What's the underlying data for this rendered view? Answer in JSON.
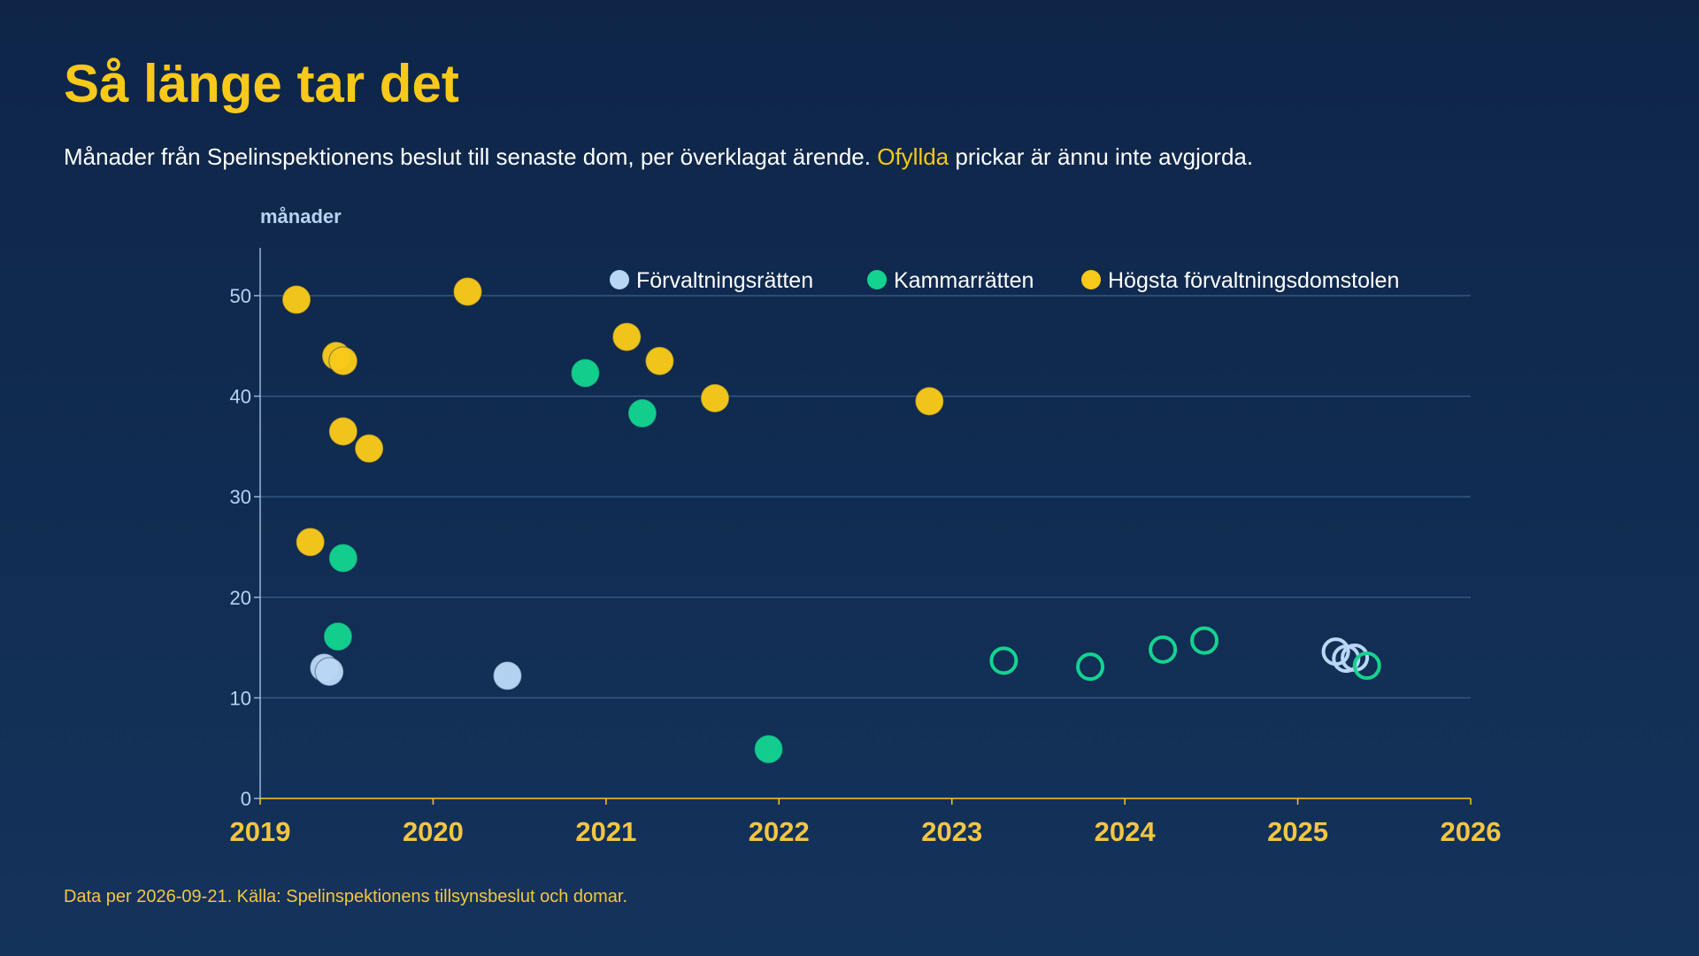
{
  "header": {
    "title": "Så länge tar det",
    "subtitle_before": "Månader från Spelinspektionens beslut till senaste dom, per överklagat ärende. ",
    "subtitle_highlight": "Ofyllda",
    "subtitle_after": " prickar är ännu inte avgjorda."
  },
  "footer": {
    "note": "Data per 2026-09-21. Källa: Spelinspektionens tillsynsbeslut och domar."
  },
  "colors": {
    "Förvaltningsrätten": "#b9d7f5",
    "Kammarrätten": "#14d390",
    "Högsta förvaltningsdomstolen": "#f8c91a",
    "accent": "#f8c91a",
    "gridline": "#35577f",
    "axis": "#9ab6d8"
  },
  "chart_data": {
    "type": "scatter",
    "title": "",
    "xlabel": "",
    "ylabel": "månader",
    "xlim": [
      2019,
      2026
    ],
    "ylim": [
      0,
      55
    ],
    "x_ticks": [
      "2019",
      "2020",
      "2021",
      "2022",
      "2023",
      "2024",
      "2025",
      "2026"
    ],
    "y_ticks": [
      "0",
      "10",
      "20",
      "30",
      "40",
      "50"
    ],
    "y_tick_values": [
      0,
      10,
      20,
      30,
      40,
      50
    ],
    "grid": true,
    "legend_position": "top-right",
    "legend": [
      "Förvaltningsrätten",
      "Kammarrätten",
      "Högsta förvaltningsdomstolen"
    ],
    "series": [
      {
        "name": "Förvaltningsrätten",
        "points": [
          {
            "x": 2019.37,
            "y": 13.0,
            "decided": true
          },
          {
            "x": 2019.4,
            "y": 12.6,
            "decided": true
          },
          {
            "x": 2020.43,
            "y": 12.2,
            "decided": true
          },
          {
            "x": 2025.22,
            "y": 14.6,
            "decided": false
          },
          {
            "x": 2025.28,
            "y": 13.9,
            "decided": false
          },
          {
            "x": 2025.33,
            "y": 14.0,
            "decided": false
          }
        ]
      },
      {
        "name": "Kammarrätten",
        "points": [
          {
            "x": 2019.45,
            "y": 16.1,
            "decided": true
          },
          {
            "x": 2019.48,
            "y": 23.9,
            "decided": true
          },
          {
            "x": 2020.88,
            "y": 42.3,
            "decided": true
          },
          {
            "x": 2021.21,
            "y": 38.3,
            "decided": true
          },
          {
            "x": 2021.94,
            "y": 4.9,
            "decided": true
          },
          {
            "x": 2023.3,
            "y": 13.7,
            "decided": false
          },
          {
            "x": 2023.8,
            "y": 13.1,
            "decided": false
          },
          {
            "x": 2024.22,
            "y": 14.8,
            "decided": false
          },
          {
            "x": 2024.46,
            "y": 15.7,
            "decided": false
          },
          {
            "x": 2025.4,
            "y": 13.2,
            "decided": false
          }
        ]
      },
      {
        "name": "Högsta förvaltningsdomstolen",
        "points": [
          {
            "x": 2019.21,
            "y": 49.6,
            "decided": true
          },
          {
            "x": 2019.29,
            "y": 25.5,
            "decided": true
          },
          {
            "x": 2019.44,
            "y": 44.0,
            "decided": true
          },
          {
            "x": 2019.48,
            "y": 43.5,
            "decided": true
          },
          {
            "x": 2019.48,
            "y": 36.5,
            "decided": true
          },
          {
            "x": 2019.63,
            "y": 34.8,
            "decided": true
          },
          {
            "x": 2020.2,
            "y": 50.4,
            "decided": true
          },
          {
            "x": 2021.12,
            "y": 45.9,
            "decided": true
          },
          {
            "x": 2021.31,
            "y": 43.5,
            "decided": true
          },
          {
            "x": 2021.63,
            "y": 39.8,
            "decided": true
          },
          {
            "x": 2022.87,
            "y": 39.5,
            "decided": true
          }
        ]
      }
    ]
  }
}
